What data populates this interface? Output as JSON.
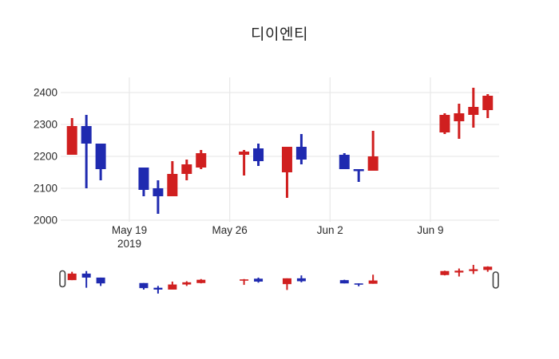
{
  "chart_data": {
    "type": "candlestick",
    "title": "디이엔티",
    "up_color": "#d01f1f",
    "down_color": "#1f2ab0",
    "grid_color": "#e9e9e9",
    "text_color": "#2a2a2a",
    "background": "#ffffff",
    "legend": "none",
    "grid": "on",
    "y_ticks": [
      2000,
      2100,
      2200,
      2300,
      2400
    ],
    "y_range": [
      1995,
      2452
    ],
    "x_range": [
      "2019-05-14",
      "2019-06-14"
    ],
    "x_ticks": [
      {
        "date": "2019-05-19",
        "label": "May 19",
        "sub": "2019"
      },
      {
        "date": "2019-05-26",
        "label": "May 26",
        "sub": ""
      },
      {
        "date": "2019-06-02",
        "label": "Jun 2",
        "sub": ""
      },
      {
        "date": "2019-06-09",
        "label": "Jun 9",
        "sub": ""
      }
    ],
    "candles": [
      {
        "date": "2019-05-15",
        "open": 2205,
        "high": 2320,
        "low": 2205,
        "close": 2295
      },
      {
        "date": "2019-05-16",
        "open": 2295,
        "high": 2330,
        "low": 2100,
        "close": 2240
      },
      {
        "date": "2019-05-17",
        "open": 2240,
        "high": 2240,
        "low": 2125,
        "close": 2160
      },
      {
        "date": "2019-05-20",
        "open": 2165,
        "high": 2165,
        "low": 2075,
        "close": 2095
      },
      {
        "date": "2019-05-21",
        "open": 2100,
        "high": 2125,
        "low": 2020,
        "close": 2075
      },
      {
        "date": "2019-05-22",
        "open": 2075,
        "high": 2185,
        "low": 2075,
        "close": 2145
      },
      {
        "date": "2019-05-23",
        "open": 2145,
        "high": 2190,
        "low": 2125,
        "close": 2175
      },
      {
        "date": "2019-05-24",
        "open": 2165,
        "high": 2220,
        "low": 2160,
        "close": 2210
      },
      {
        "date": "2019-05-27",
        "open": 2205,
        "high": 2220,
        "low": 2140,
        "close": 2215
      },
      {
        "date": "2019-05-28",
        "open": 2225,
        "high": 2240,
        "low": 2170,
        "close": 2185
      },
      {
        "date": "2019-05-30",
        "open": 2150,
        "high": 2230,
        "low": 2070,
        "close": 2230
      },
      {
        "date": "2019-05-31",
        "open": 2230,
        "high": 2270,
        "low": 2175,
        "close": 2190
      },
      {
        "date": "2019-06-03",
        "open": 2205,
        "high": 2210,
        "low": 2160,
        "close": 2160
      },
      {
        "date": "2019-06-04",
        "open": 2160,
        "high": 2160,
        "low": 2120,
        "close": 2155
      },
      {
        "date": "2019-06-05",
        "open": 2155,
        "high": 2280,
        "low": 2155,
        "close": 2200
      },
      {
        "date": "2019-06-10",
        "open": 2275,
        "high": 2335,
        "low": 2270,
        "close": 2330
      },
      {
        "date": "2019-06-11",
        "open": 2310,
        "high": 2365,
        "low": 2255,
        "close": 2335
      },
      {
        "date": "2019-06-12",
        "open": 2330,
        "high": 2415,
        "low": 2290,
        "close": 2355
      },
      {
        "date": "2019-06-13",
        "open": 2345,
        "high": 2395,
        "low": 2320,
        "close": 2390
      }
    ],
    "rangeslider": {
      "visible": true
    }
  }
}
